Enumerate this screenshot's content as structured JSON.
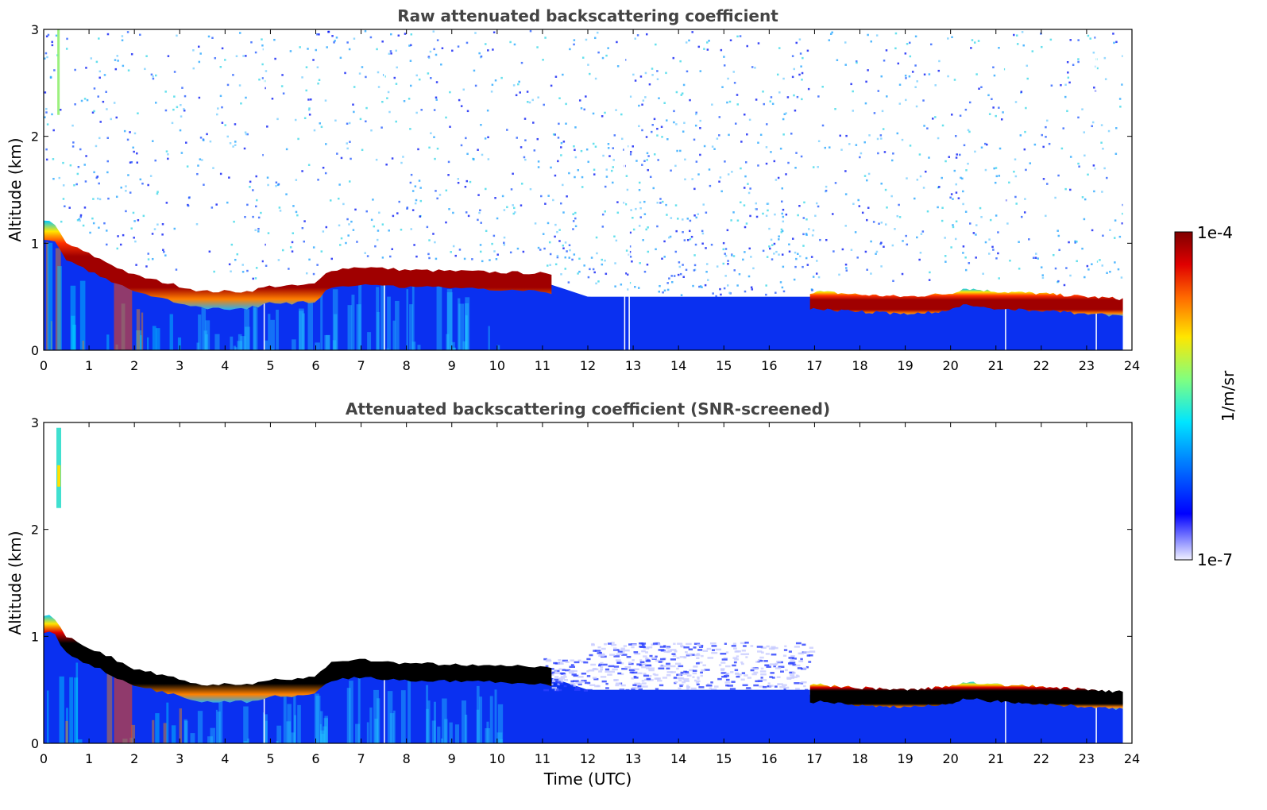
{
  "chart_data": [
    {
      "type": "heatmap",
      "title": "Raw attenuated backscattering coefficient",
      "xlabel": "",
      "ylabel": "Altitude (km)",
      "xlim": [
        0,
        24
      ],
      "ylim": [
        0,
        3
      ],
      "xticks": [
        0,
        1,
        2,
        3,
        4,
        5,
        6,
        7,
        8,
        9,
        10,
        11,
        12,
        13,
        14,
        15,
        16,
        17,
        18,
        19,
        20,
        21,
        22,
        23,
        24
      ],
      "yticks": [
        0,
        1,
        2,
        3
      ],
      "data_extent_hours": [
        0,
        23.8
      ],
      "layer_top_km": [
        [
          0.2,
          1.2
        ],
        [
          0.5,
          1.0
        ],
        [
          1.0,
          0.9
        ],
        [
          1.5,
          0.8
        ],
        [
          2.0,
          0.7
        ],
        [
          2.5,
          0.65
        ],
        [
          3.0,
          0.6
        ],
        [
          3.5,
          0.55
        ],
        [
          4.0,
          0.55
        ],
        [
          4.5,
          0.55
        ],
        [
          5.0,
          0.6
        ],
        [
          5.5,
          0.6
        ],
        [
          6.0,
          0.62
        ],
        [
          6.3,
          0.75
        ],
        [
          7.0,
          0.78
        ],
        [
          8.0,
          0.75
        ],
        [
          9.0,
          0.74
        ],
        [
          10.0,
          0.73
        ],
        [
          11.0,
          0.72
        ],
        [
          11.5,
          0.65
        ],
        [
          12.0,
          0.58
        ],
        [
          13.0,
          0.55
        ],
        [
          14.0,
          0.52
        ],
        [
          15.0,
          0.5
        ],
        [
          16.0,
          0.5
        ],
        [
          16.8,
          0.52
        ],
        [
          17.0,
          0.55
        ],
        [
          18.0,
          0.52
        ],
        [
          19.0,
          0.5
        ],
        [
          20.0,
          0.53
        ],
        [
          20.3,
          0.58
        ],
        [
          21.0,
          0.55
        ],
        [
          22.0,
          0.53
        ],
        [
          23.0,
          0.5
        ],
        [
          23.8,
          0.48
        ]
      ]
    },
    {
      "type": "heatmap",
      "title": "Attenuated backscattering coefficient (SNR-screened)",
      "xlabel": "Time (UTC)",
      "ylabel": "Altitude (km)",
      "xlim": [
        0,
        24
      ],
      "ylim": [
        0,
        3
      ],
      "xticks": [
        0,
        1,
        2,
        3,
        4,
        5,
        6,
        7,
        8,
        9,
        10,
        11,
        12,
        13,
        14,
        15,
        16,
        17,
        18,
        19,
        20,
        21,
        22,
        23,
        24
      ],
      "yticks": [
        0,
        1,
        2,
        3
      ],
      "data_extent_hours": [
        0,
        23.8
      ]
    }
  ],
  "colorbar": {
    "label": "1/m/sr",
    "max_label": "1e-4",
    "min_label": "1e-7",
    "colormap": "jet",
    "scale": "log"
  },
  "colors": {
    "background": "#ffffff",
    "title": "#444444",
    "low": "#0a24f0",
    "layer_peak": "#a00000",
    "saturated": "#000000"
  }
}
